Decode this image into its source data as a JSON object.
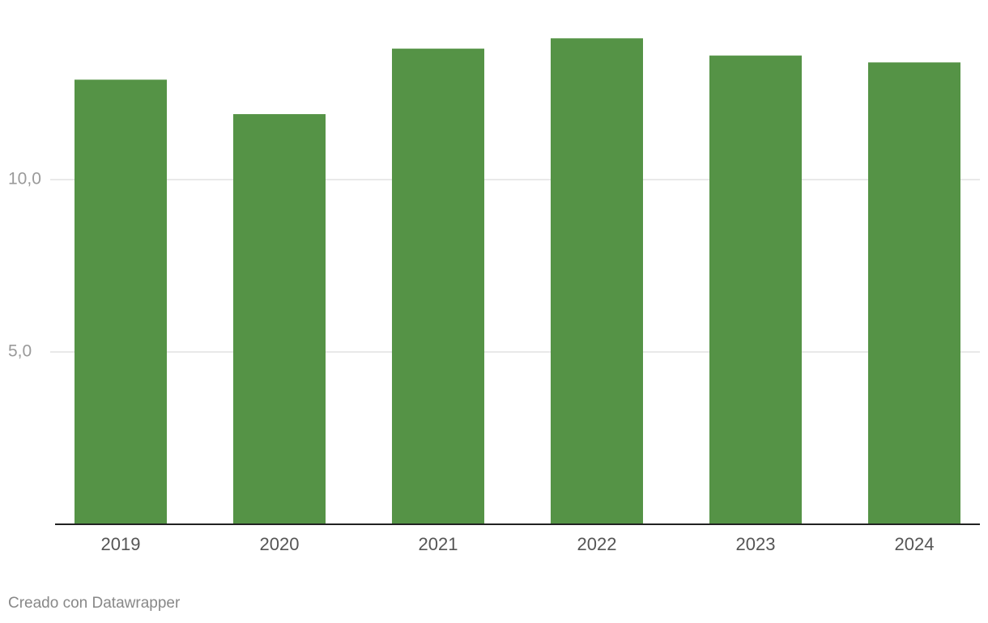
{
  "chart_data": {
    "type": "bar",
    "categories": [
      "2019",
      "2020",
      "2021",
      "2022",
      "2023",
      "2024"
    ],
    "values": [
      12.9,
      11.9,
      13.8,
      14.1,
      13.6,
      13.4
    ],
    "color": "#559346",
    "ylim": [
      0,
      15
    ],
    "yticks": [
      {
        "value": 5,
        "label": "5,0"
      },
      {
        "value": 10,
        "label": "10,0"
      }
    ],
    "grid": true,
    "credit": "Creado con Datawrapper"
  }
}
